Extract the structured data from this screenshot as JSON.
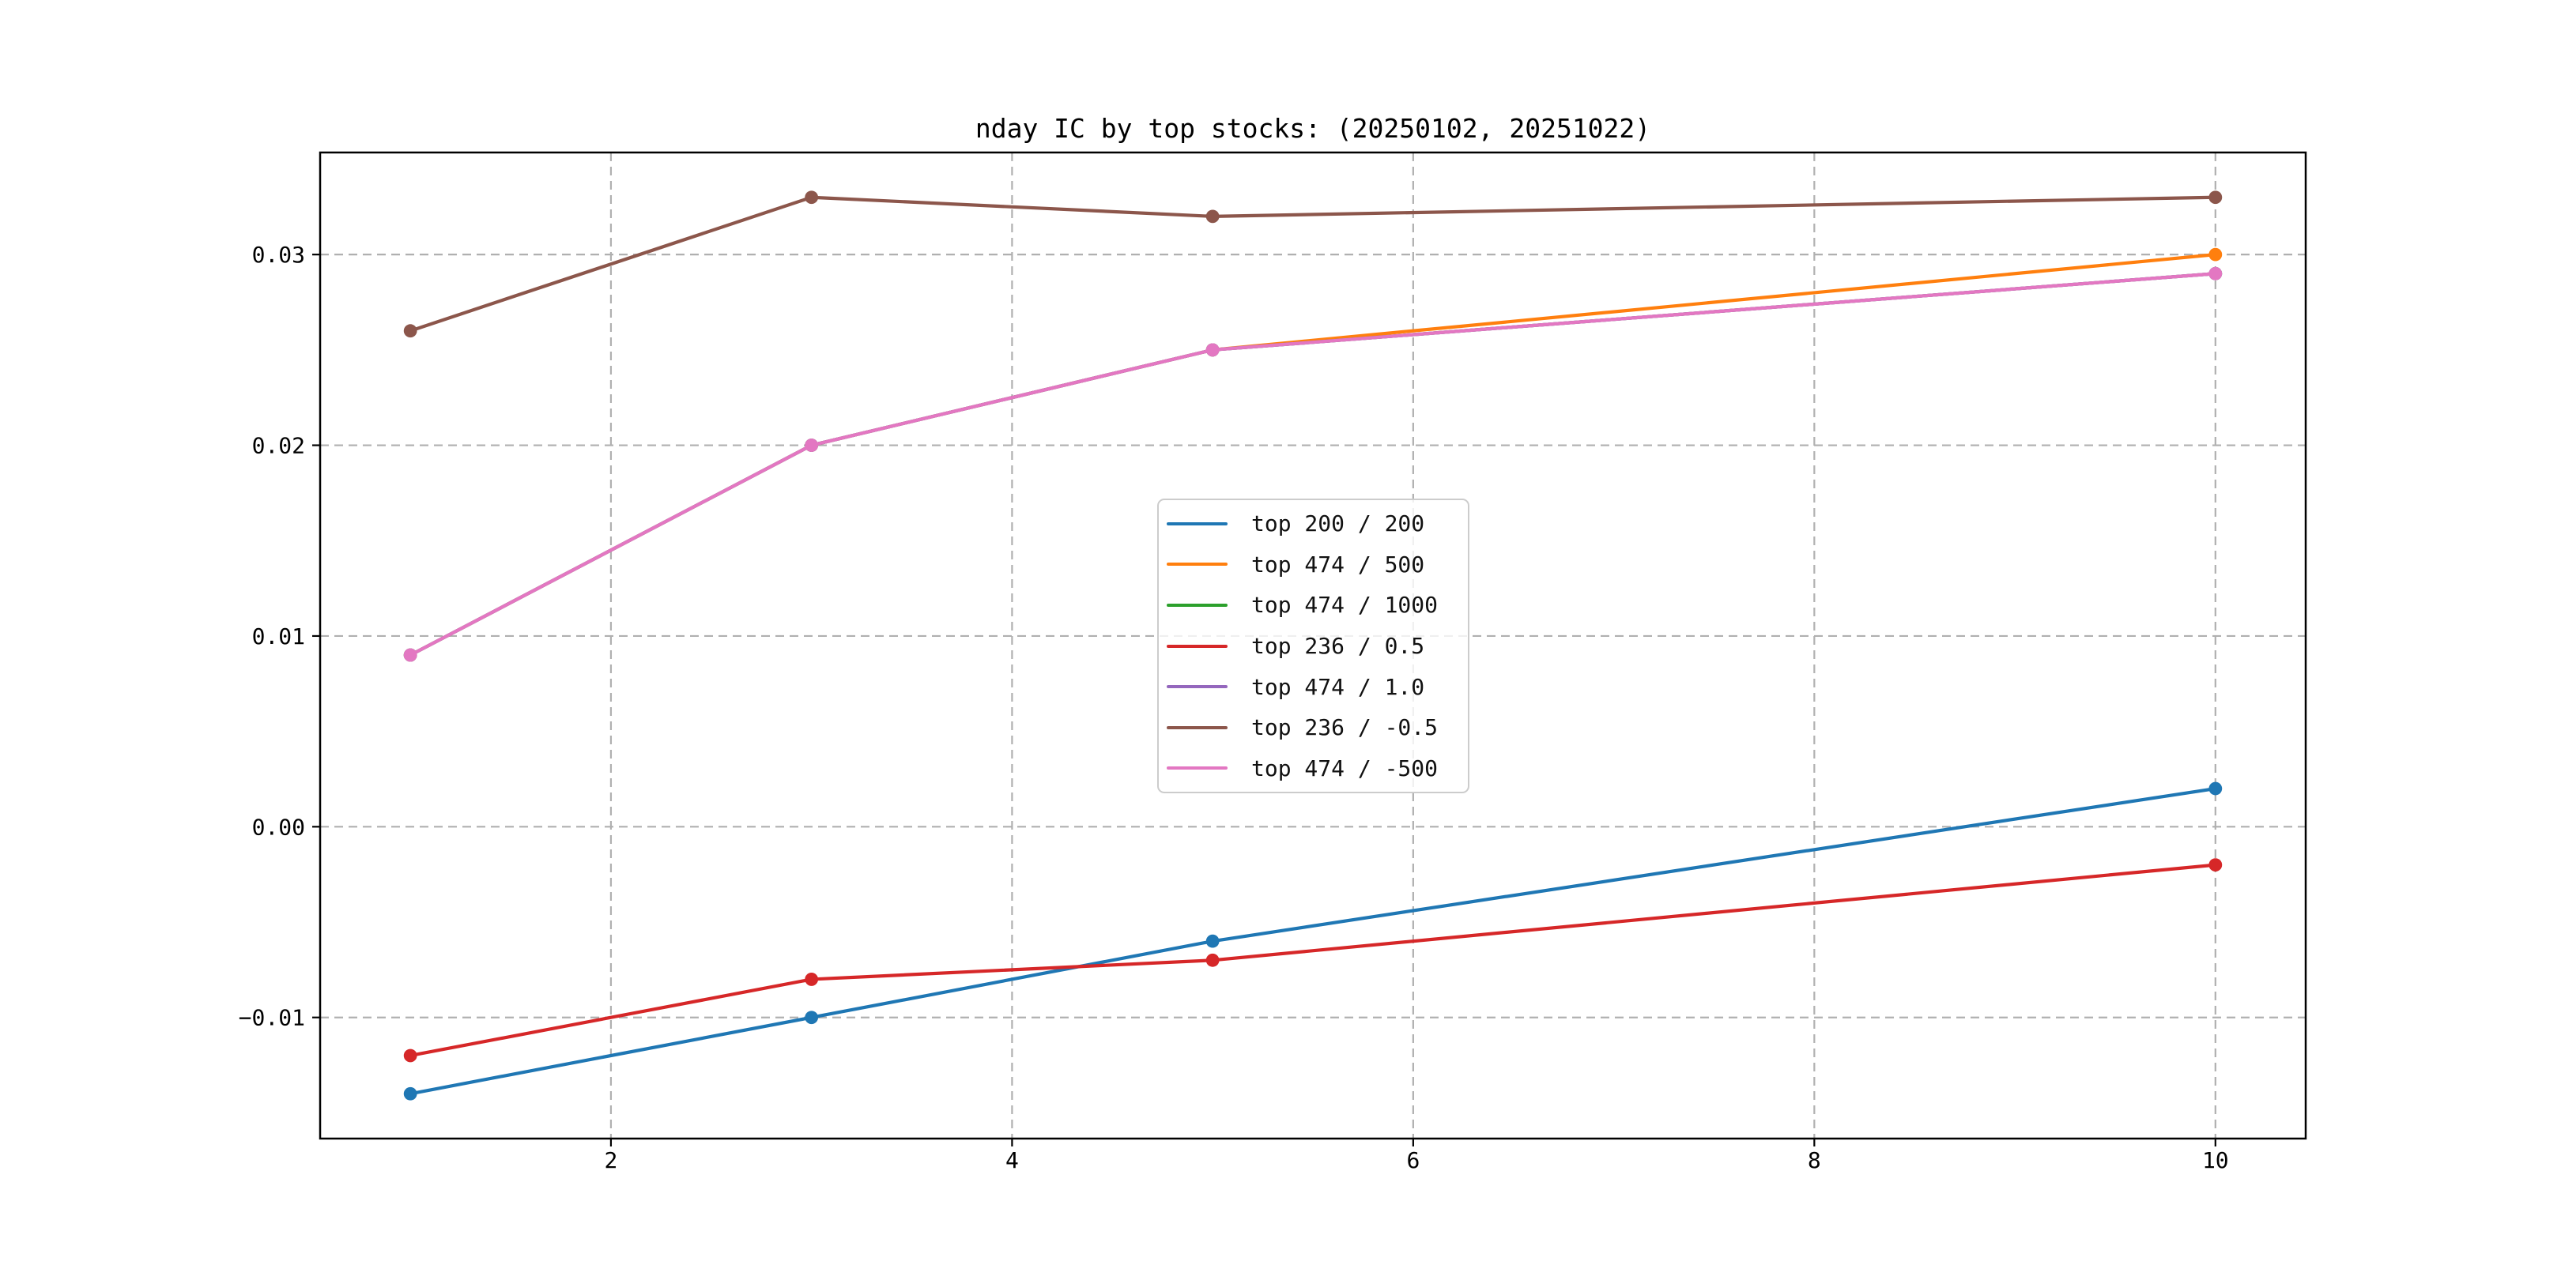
{
  "chart_data": {
    "type": "line",
    "title": "nday IC by top stocks: (20250102, 20251022)",
    "xlabel": "",
    "ylabel": "",
    "x": [
      1,
      3,
      5,
      10
    ],
    "xlim": [
      0.55,
      10.45
    ],
    "ylim": [
      -0.01635,
      0.03535
    ],
    "xticks": [
      2,
      4,
      6,
      8,
      10
    ],
    "xtick_labels": [
      "2",
      "4",
      "6",
      "8",
      "10"
    ],
    "yticks": [
      -0.01,
      0.0,
      0.01,
      0.02,
      0.03
    ],
    "ytick_labels": [
      "−0.01",
      "0.00",
      "0.01",
      "0.02",
      "0.03"
    ],
    "grid": true,
    "legend_position": "center",
    "marker": "circle",
    "series": [
      {
        "name": "top 200 / 200",
        "color": "#1f77b4",
        "values": [
          -0.014,
          -0.01,
          -0.006,
          0.002
        ]
      },
      {
        "name": "top 474 / 500",
        "color": "#ff7f0e",
        "values": [
          0.009,
          0.02,
          0.025,
          0.03
        ]
      },
      {
        "name": "top 474 / 1000",
        "color": "#2ca02c",
        "values": [
          0.009,
          0.02,
          0.025,
          0.029
        ]
      },
      {
        "name": "top 236 / 0.5",
        "color": "#d62728",
        "values": [
          -0.012,
          -0.008,
          -0.007,
          -0.002
        ]
      },
      {
        "name": "top 474 / 1.0",
        "color": "#9467bd",
        "values": [
          0.009,
          0.02,
          0.025,
          0.029
        ]
      },
      {
        "name": "top 236 / -0.5",
        "color": "#8c564b",
        "values": [
          0.026,
          0.033,
          0.032,
          0.033
        ]
      },
      {
        "name": "top 474 / -500",
        "color": "#e377c2",
        "values": [
          0.009,
          0.02,
          0.025,
          0.029
        ]
      }
    ]
  }
}
